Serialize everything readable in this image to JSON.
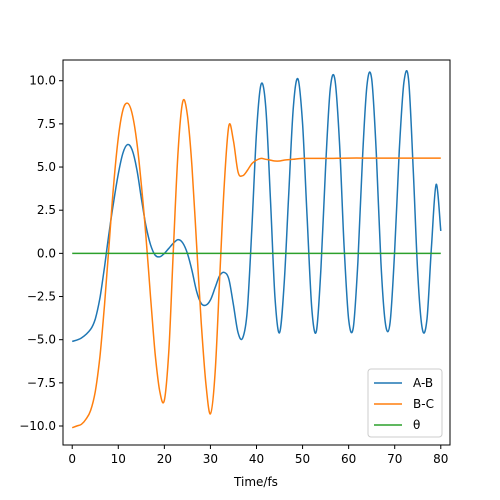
{
  "chart_data": {
    "type": "line",
    "xlabel": "Time/fs",
    "ylabel": "",
    "xlim": [
      -2,
      82
    ],
    "ylim": [
      -11.1,
      11.2
    ],
    "xticks": [
      0,
      10,
      20,
      30,
      40,
      50,
      60,
      70,
      80
    ],
    "xtick_labels": [
      "0",
      "10",
      "20",
      "30",
      "40",
      "50",
      "60",
      "70",
      "80"
    ],
    "yticks": [
      -10.0,
      -7.5,
      -5.0,
      -2.5,
      0.0,
      2.5,
      5.0,
      7.5,
      10.0
    ],
    "ytick_labels": [
      "−10.0",
      "−7.5",
      "−5.0",
      "−2.5",
      "0.0",
      "2.5",
      "5.0",
      "7.5",
      "10.0"
    ],
    "grid": false,
    "legend_position": "lower right",
    "series": [
      {
        "name": "A-B",
        "color": "#1f77b4",
        "x": [
          0,
          2,
          4,
          5,
          6,
          7,
          8,
          9,
          10,
          11,
          12,
          13,
          14,
          15,
          16,
          17,
          18,
          19,
          20,
          21,
          22,
          23,
          24,
          25,
          26,
          27,
          28,
          29,
          30,
          31,
          32,
          33,
          34,
          35,
          36,
          37,
          38,
          39,
          40,
          41,
          42,
          43,
          44,
          45,
          46,
          47,
          48,
          49,
          50,
          51,
          52,
          53,
          54,
          55,
          56,
          57,
          58,
          59,
          60,
          61,
          62,
          63,
          64,
          65,
          66,
          67,
          68,
          69,
          70,
          71,
          72,
          73,
          74,
          75,
          76,
          77,
          78,
          79,
          80
        ],
        "y": [
          -5.1,
          -4.9,
          -4.4,
          -3.8,
          -2.6,
          -0.8,
          1.2,
          3.0,
          4.6,
          5.8,
          6.3,
          6.0,
          4.9,
          3.2,
          1.6,
          0.5,
          -0.1,
          -0.2,
          0.0,
          0.3,
          0.6,
          0.8,
          0.6,
          0.0,
          -1.0,
          -2.2,
          -2.9,
          -3.0,
          -2.7,
          -2.0,
          -1.3,
          -1.1,
          -1.5,
          -3.0,
          -4.6,
          -4.9,
          -3.3,
          1.5,
          7.0,
          9.8,
          8.5,
          3.3,
          -2.5,
          -4.6,
          -1.8,
          3.5,
          8.5,
          10.1,
          7.5,
          2.0,
          -3.2,
          -4.5,
          -0.8,
          5.0,
          9.5,
          10.1,
          6.5,
          0.5,
          -3.8,
          -4.3,
          -0.5,
          5.5,
          9.8,
          10.1,
          5.8,
          -0.5,
          -4.1,
          -4.0,
          0.2,
          6.0,
          9.9,
          10.1,
          5.0,
          -1.2,
          -4.4,
          -3.8,
          0.5,
          4.0,
          1.3
        ]
      },
      {
        "name": "B-C",
        "color": "#ff7f0e",
        "x": [
          0,
          1,
          2,
          3,
          4,
          5,
          6,
          7,
          8,
          9,
          10,
          11,
          12,
          13,
          14,
          15,
          16,
          17,
          18,
          19,
          20,
          21,
          22,
          23,
          24,
          25,
          26,
          27,
          28,
          29,
          30,
          31,
          32,
          33,
          34,
          35,
          36,
          37,
          38,
          39,
          40,
          41,
          42,
          43,
          44,
          45,
          46,
          48,
          50,
          55,
          60,
          65,
          70,
          75,
          80
        ],
        "y": [
          -10.1,
          -10.0,
          -9.9,
          -9.6,
          -9.1,
          -8.0,
          -6.0,
          -3.0,
          0.5,
          4.0,
          6.7,
          8.3,
          8.7,
          8.1,
          6.5,
          4.0,
          1.0,
          -2.5,
          -5.8,
          -8.0,
          -8.5,
          -5.5,
          0.5,
          6.0,
          8.8,
          8.0,
          5.0,
          0.5,
          -4.0,
          -7.5,
          -9.3,
          -7.0,
          -1.5,
          4.0,
          7.4,
          6.5,
          4.7,
          4.5,
          4.8,
          5.2,
          5.4,
          5.5,
          5.45,
          5.4,
          5.35,
          5.35,
          5.4,
          5.45,
          5.5,
          5.5,
          5.52,
          5.52,
          5.52,
          5.52,
          5.52
        ]
      },
      {
        "name": "θ",
        "color": "#2ca02c",
        "x": [
          0,
          80
        ],
        "y": [
          0.0,
          0.0
        ]
      }
    ]
  }
}
